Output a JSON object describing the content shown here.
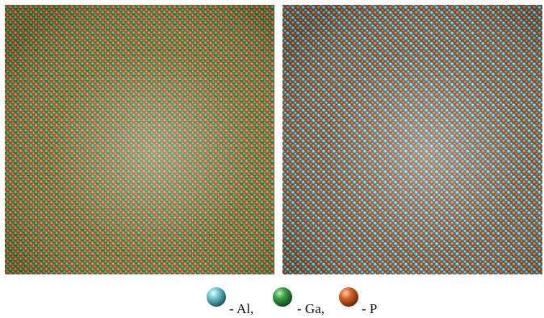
{
  "legend": [
    {
      "label": "- Al,"
    },
    {
      "label": "- Ga,"
    },
    {
      "label": "- P"
    }
  ]
}
